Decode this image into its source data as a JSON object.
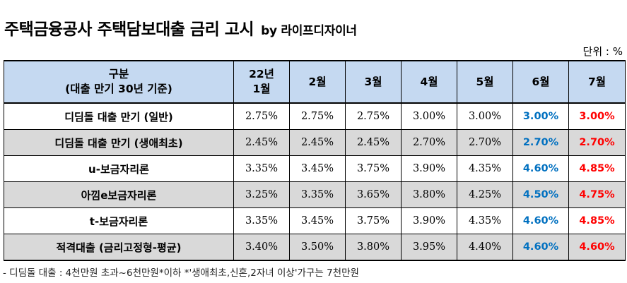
{
  "title": "주택금융공사 주택담보대출 금리 고시",
  "byline": "by 라이프디자이너",
  "unit": "단위 : %",
  "table": {
    "header": {
      "category_line1": "구분",
      "category_line2": "(대출 만기 30년 기준)",
      "months": [
        {
          "line1": "22년",
          "line2": "1월"
        },
        {
          "line1": "2월",
          "line2": ""
        },
        {
          "line1": "3월",
          "line2": ""
        },
        {
          "line1": "4월",
          "line2": ""
        },
        {
          "line1": "5월",
          "line2": ""
        },
        {
          "line1": "6월",
          "line2": ""
        },
        {
          "line1": "7월",
          "line2": ""
        }
      ]
    },
    "rows": [
      {
        "label": "디딤돌 대출 만기 (일반)",
        "values": [
          "2.75%",
          "2.75%",
          "2.75%",
          "3.00%",
          "3.00%",
          "3.00%",
          "3.00%"
        ]
      },
      {
        "label": "디딤돌 대출 만기 (생애최초)",
        "values": [
          "2.45%",
          "2.45%",
          "2.45%",
          "2.70%",
          "2.70%",
          "2.70%",
          "2.70%"
        ]
      },
      {
        "label": "u-보금자리론",
        "values": [
          "3.35%",
          "3.45%",
          "3.75%",
          "3.90%",
          "4.35%",
          "4.60%",
          "4.85%"
        ]
      },
      {
        "label": "아낌e보금자리론",
        "values": [
          "3.25%",
          "3.35%",
          "3.65%",
          "3.80%",
          "4.25%",
          "4.50%",
          "4.75%"
        ]
      },
      {
        "label": "t-보금자리론",
        "values": [
          "3.35%",
          "3.45%",
          "3.75%",
          "3.90%",
          "4.35%",
          "4.60%",
          "4.85%"
        ]
      },
      {
        "label": "적격대출 (금리고정형-평균)",
        "values": [
          "3.40%",
          "3.50%",
          "3.80%",
          "3.95%",
          "4.40%",
          "4.60%",
          "4.60%"
        ]
      }
    ]
  },
  "colors": {
    "header_bg": "#c5d9f1",
    "alt_row_bg": "#d9d9d9",
    "june": "#0070c0",
    "july": "#ff0000"
  },
  "footnote": "- 디딤돌 대출 : 4천만원 초과~6천만원*이하 *'생애최초,신혼,2자녀 이상'가구는 7천만원"
}
